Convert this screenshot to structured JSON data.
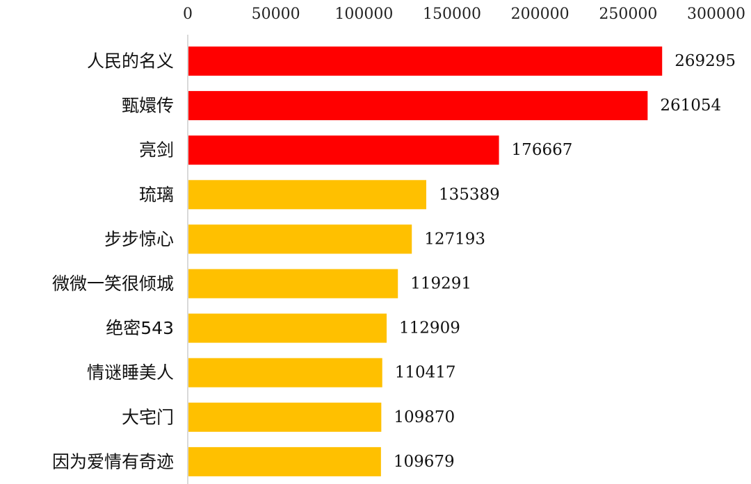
{
  "chart_data": {
    "type": "bar",
    "orientation": "horizontal",
    "title": "",
    "xlabel": "",
    "ylabel": "",
    "xlim": [
      0,
      300000
    ],
    "x_ticks": [
      "0",
      "50000",
      "100000",
      "150000",
      "200000",
      "250000",
      "300000"
    ],
    "x_axis_position": "top",
    "grid": false,
    "legend": "none",
    "data_labels": true,
    "categories": [
      "人民的名义",
      "甄嬛传",
      "亮剑",
      "琉璃",
      "步步惊心",
      "微微一笑很倾城",
      "绝密543",
      "情谜睡美人",
      "大宅门",
      "因为爱情有奇迹"
    ],
    "values": [
      269295,
      261054,
      176667,
      135389,
      127193,
      119291,
      112909,
      110417,
      109870,
      109679
    ],
    "value_labels": [
      "269295",
      "261054",
      "176667",
      "135389",
      "127193",
      "119291",
      "112909",
      "110417",
      "109870",
      "109679"
    ],
    "bar_colors": [
      "#ff0000",
      "#ff0000",
      "#ff0000",
      "#ffc000",
      "#ffc000",
      "#ffc000",
      "#ffc000",
      "#ffc000",
      "#ffc000",
      "#ffc000"
    ],
    "axis_color": "#d9d9d9"
  }
}
